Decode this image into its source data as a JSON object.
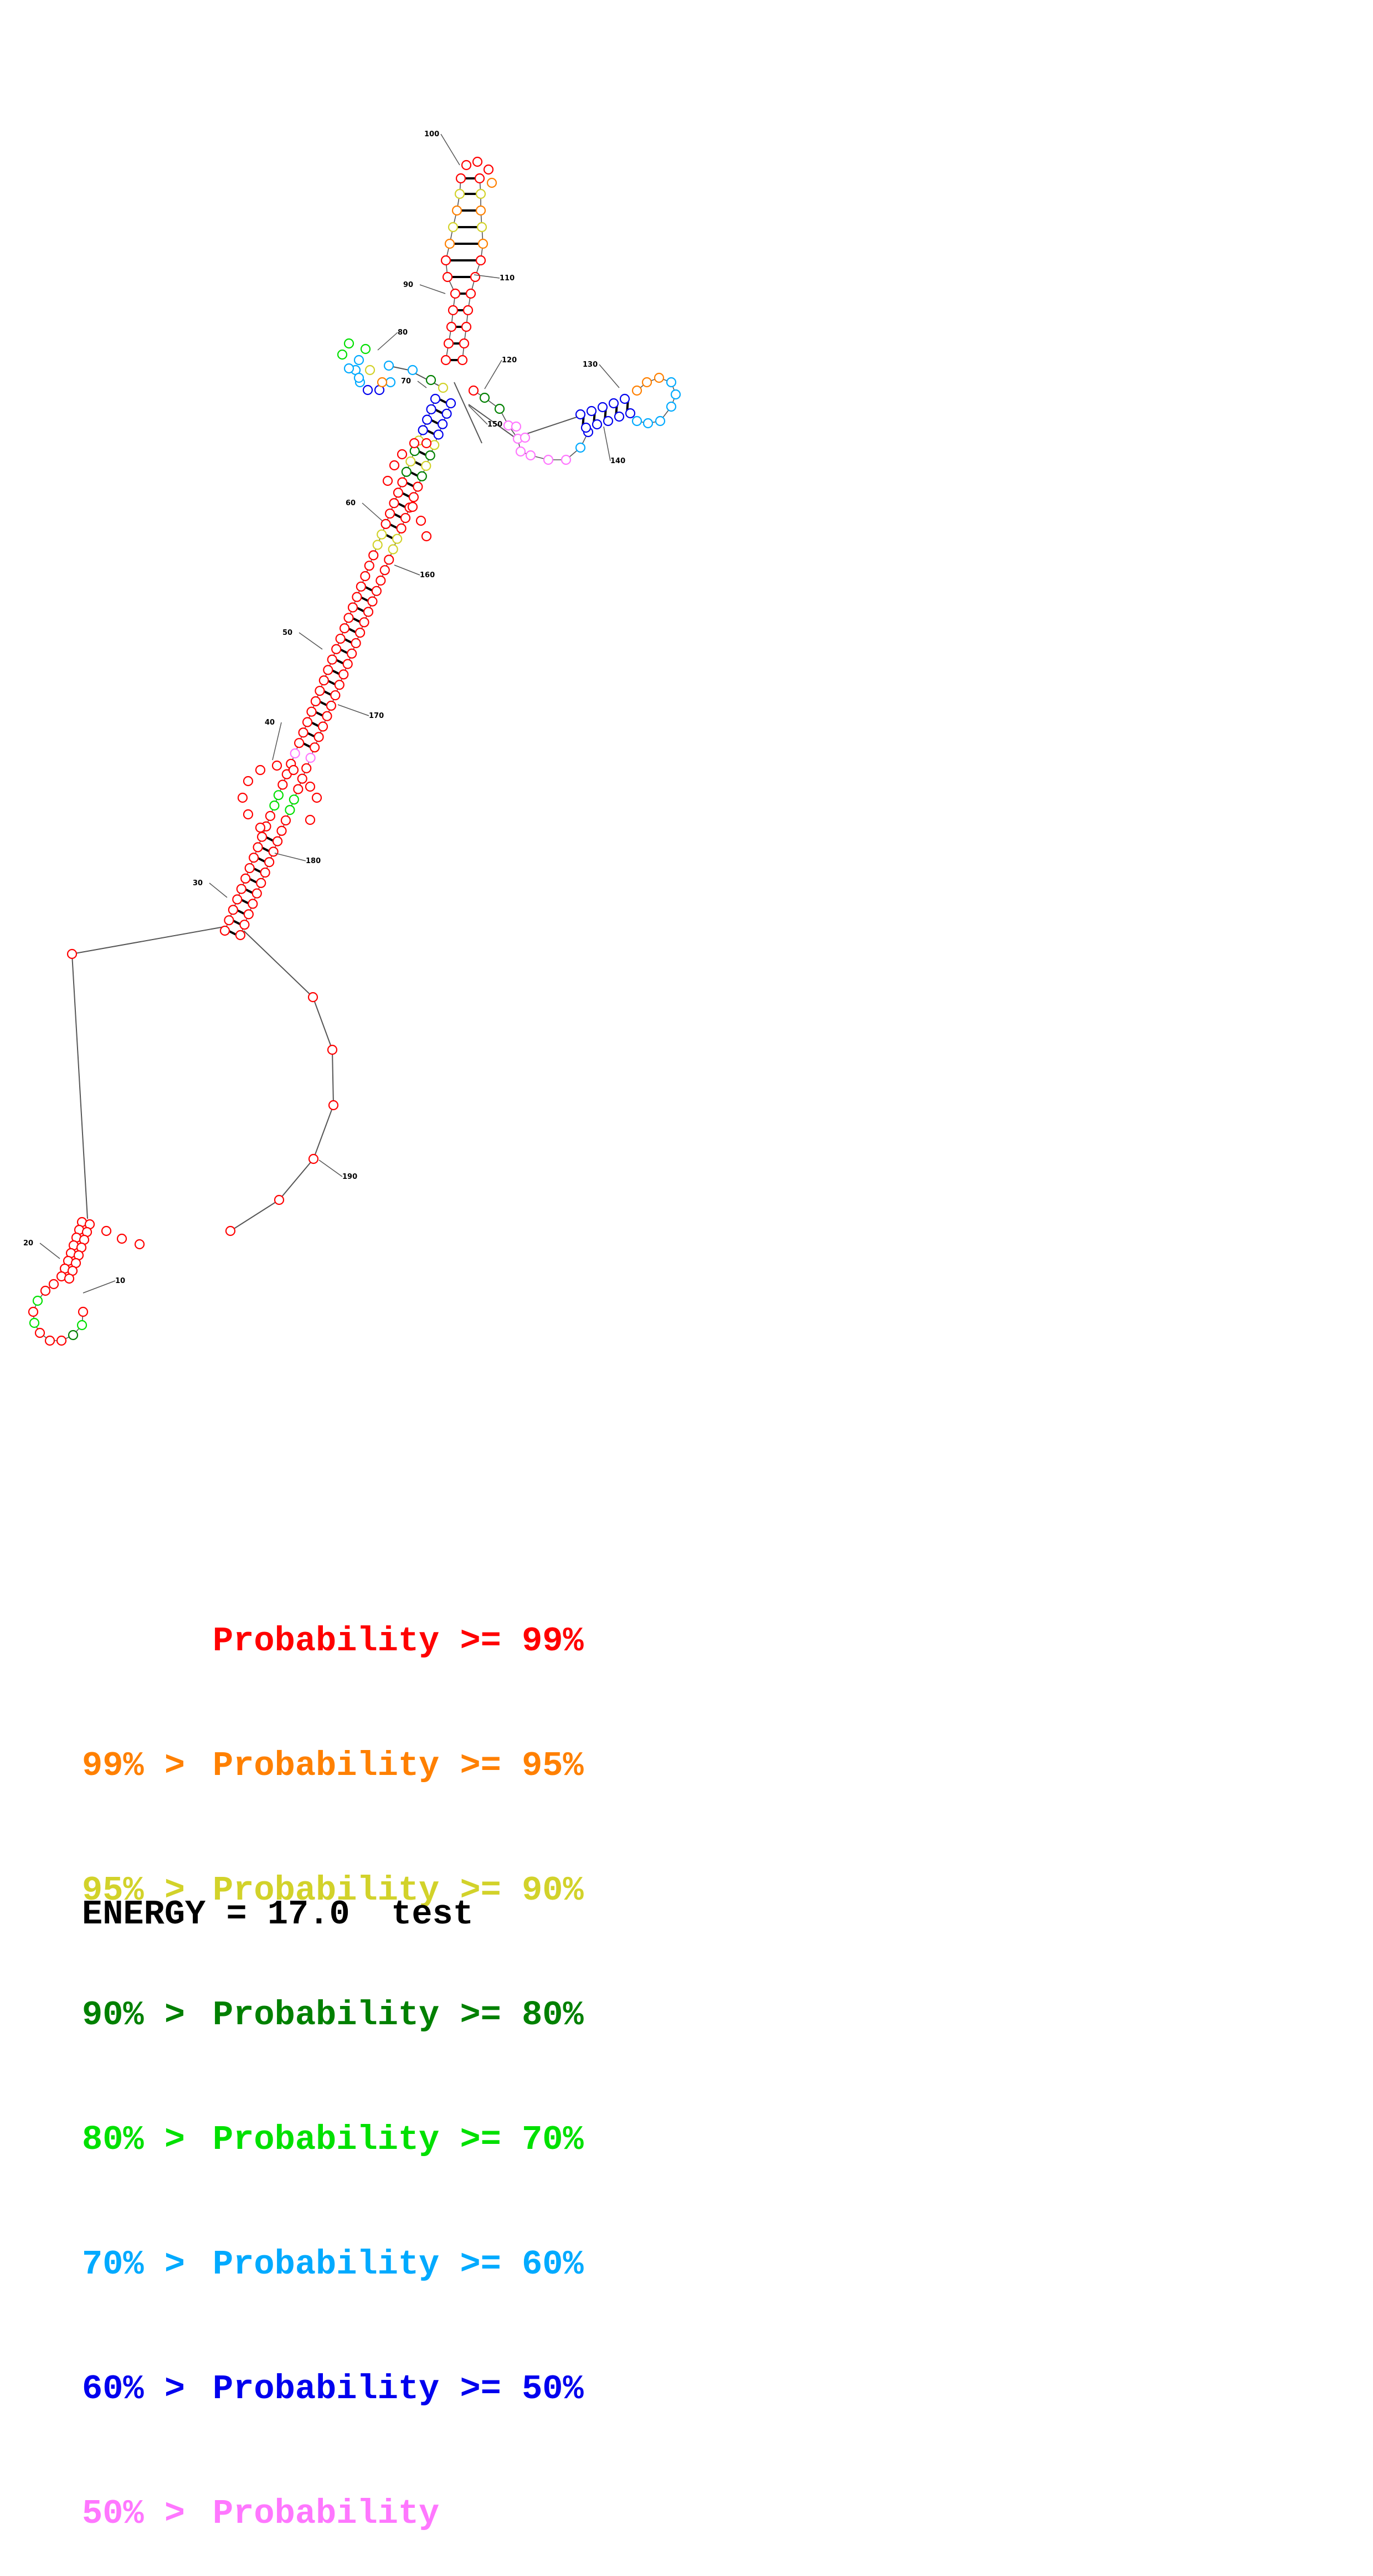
{
  "colors": {
    "p99": "#ff0000",
    "p95": "#ff8000",
    "p90": "#d2d22a",
    "p80": "#008000",
    "p70": "#00e000",
    "p60": "#00aaff",
    "p50": "#0000ee",
    "plow": "#ff77ff",
    "line": "#555555",
    "ink": "#000000"
  },
  "diagram": {
    "position_labels": [
      "10",
      "20",
      "30",
      "40",
      "50",
      "60",
      "70",
      "80",
      "90",
      "100",
      "110",
      "120",
      "130",
      "140",
      "150",
      "160",
      "170",
      "180",
      "190"
    ]
  },
  "legend": {
    "rows": [
      {
        "prefix": "",
        "text": "Probability >= 99%",
        "color_key": "p99"
      },
      {
        "prefix": "99% > ",
        "text": "Probability >= 95%",
        "color_key": "p95"
      },
      {
        "prefix": "95% > ",
        "text": "Probability >= 90%",
        "color_key": "p90"
      },
      {
        "prefix": "90% > ",
        "text": "Probability >= 80%",
        "color_key": "p80"
      },
      {
        "prefix": "80% > ",
        "text": "Probability >= 70%",
        "color_key": "p70"
      },
      {
        "prefix": "70% > ",
        "text": "Probability >= 60%",
        "color_key": "p60"
      },
      {
        "prefix": "60% > ",
        "text": "Probability >= 50%",
        "color_key": "p50"
      },
      {
        "prefix": "50% > ",
        "text": "Probability",
        "color_key": "plow"
      }
    ]
  },
  "energy": {
    "label": "ENERGY = 17.0",
    "name": "test"
  }
}
